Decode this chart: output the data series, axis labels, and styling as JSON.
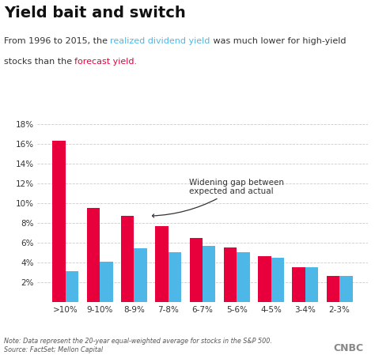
{
  "title": "Yield bait and switch",
  "categories": [
    ">10%",
    "9-10%",
    "8-9%",
    "7-8%",
    "6-7%",
    "5-6%",
    "4-5%",
    "3-4%",
    "2-3%"
  ],
  "forecast_values": [
    16.3,
    9.5,
    8.7,
    7.7,
    6.5,
    5.5,
    4.6,
    3.5,
    2.6
  ],
  "realized_values": [
    3.1,
    4.1,
    5.4,
    5.0,
    5.7,
    5.0,
    4.5,
    3.5,
    2.6
  ],
  "forecast_color": "#e8003d",
  "realized_color": "#4db8e8",
  "ylim": [
    0,
    18
  ],
  "yticks": [
    2,
    4,
    6,
    8,
    10,
    12,
    14,
    16,
    18
  ],
  "annotation_text": "Widening gap between\nexpected and actual",
  "note_text": "Note: Data represent the 20-year equal-weighted average for stocks in the S&P 500.\nSource: FactSet; Mellon Capital",
  "background_color": "#ffffff",
  "grid_color": "#cccccc",
  "title_fontsize": 14,
  "subtitle_fontsize": 8.0,
  "axis_fontsize": 7.5
}
